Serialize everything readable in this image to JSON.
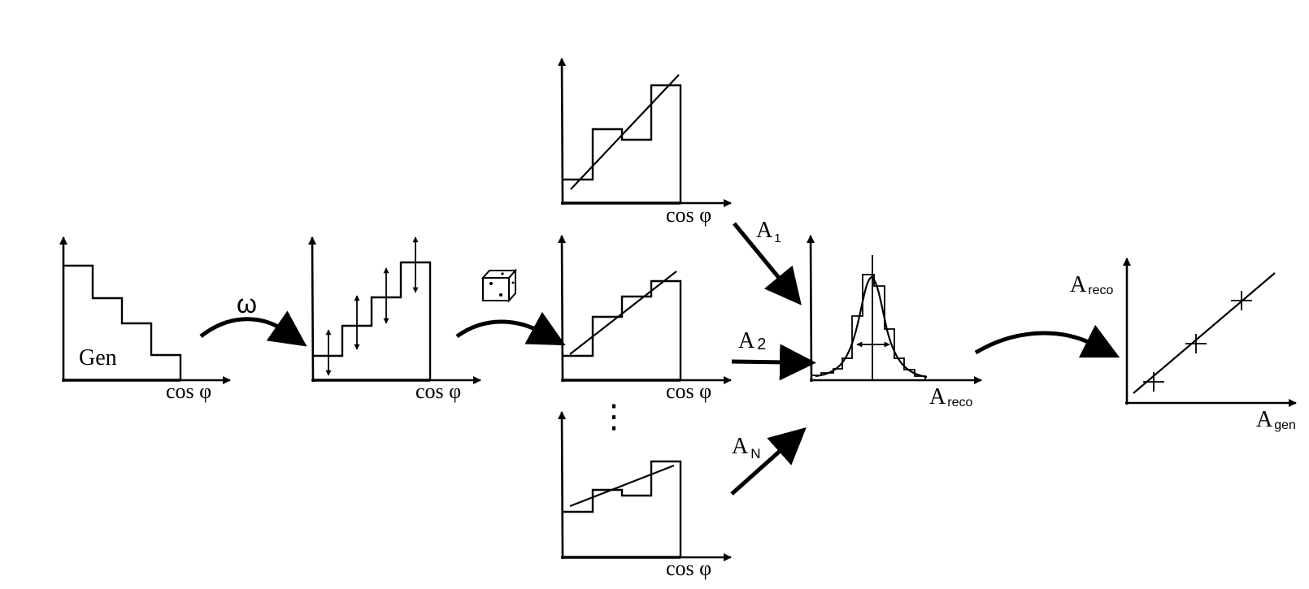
{
  "axis_label_cos": "cos φ",
  "gen_label": "Gen",
  "omega_label": "ω",
  "arrow_labels": {
    "a1": {
      "main": "A",
      "sub": "1"
    },
    "a2": {
      "main": "A",
      "sub": "2"
    },
    "an": {
      "main": "A",
      "sub": "N"
    }
  },
  "pull_xlabel": {
    "main": "A",
    "sub": "reco"
  },
  "linearity_ylabel": {
    "main": "A",
    "sub": "reco"
  },
  "linearity_xlabel": {
    "main": "A",
    "sub": "gen"
  },
  "ellipsis": "⋮",
  "icons": [
    "dice-icon",
    "curved-arrow-icon",
    "straight-arrow-icon",
    "double-arrow-icon"
  ],
  "color": "#000000"
}
